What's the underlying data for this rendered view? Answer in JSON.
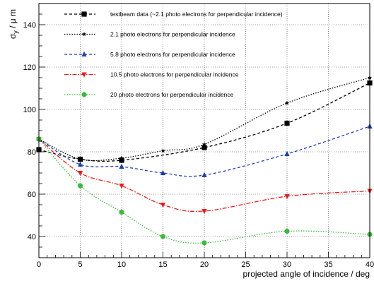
{
  "chart_data": {
    "type": "line",
    "title": "",
    "xlabel": "projected angle of incidence / deg",
    "ylabel": "σ_y / μ m",
    "xlim": [
      0,
      40
    ],
    "ylim": [
      30,
      150
    ],
    "xticks": [
      0,
      5,
      10,
      15,
      20,
      25,
      30,
      35,
      40
    ],
    "yticks": [
      40,
      60,
      80,
      100,
      120,
      140
    ],
    "grid": true,
    "legend_position": "top-left",
    "series": [
      {
        "name": "testbeam data (~2.1 photo electrons for perpendicular incidence)",
        "color": "#000000",
        "dash": "4,3",
        "marker": "square",
        "x": [
          0,
          5,
          10,
          20,
          30,
          40
        ],
        "y": [
          81,
          76.5,
          76,
          82,
          93.5,
          112.5
        ]
      },
      {
        "name": "2.1 photo electrons for perpendicular incidence",
        "color": "#000000",
        "dash": "1.5,2",
        "marker": "star",
        "x": [
          0,
          5,
          10,
          15,
          20,
          30,
          40
        ],
        "y": [
          86,
          76.5,
          77,
          80.5,
          83.5,
          103,
          115
        ]
      },
      {
        "name": "5.8 photo electrons for perpendicular incidence",
        "color": "#1f3fa8",
        "dash": "4,3",
        "marker": "triangle-up",
        "x": [
          0,
          5,
          10,
          15,
          20,
          30,
          40
        ],
        "y": [
          86,
          74,
          73,
          70,
          69,
          79,
          92
        ]
      },
      {
        "name": "10.5 photo electrons for perpendicular incidence",
        "color": "#e02020",
        "dash": "6,2,1.5,2",
        "marker": "triangle-down",
        "x": [
          0,
          5,
          10,
          15,
          20,
          30,
          40
        ],
        "y": [
          86,
          70,
          64,
          55,
          52,
          59,
          61.5
        ]
      },
      {
        "name": "20 photo electrons for perpendicular incidence",
        "color": "#3cb83c",
        "dash": "1.5,2",
        "marker": "circle",
        "x": [
          0,
          5,
          10,
          15,
          20,
          30,
          40
        ],
        "y": [
          86,
          64,
          51.5,
          40,
          37,
          42.5,
          41
        ]
      }
    ]
  }
}
